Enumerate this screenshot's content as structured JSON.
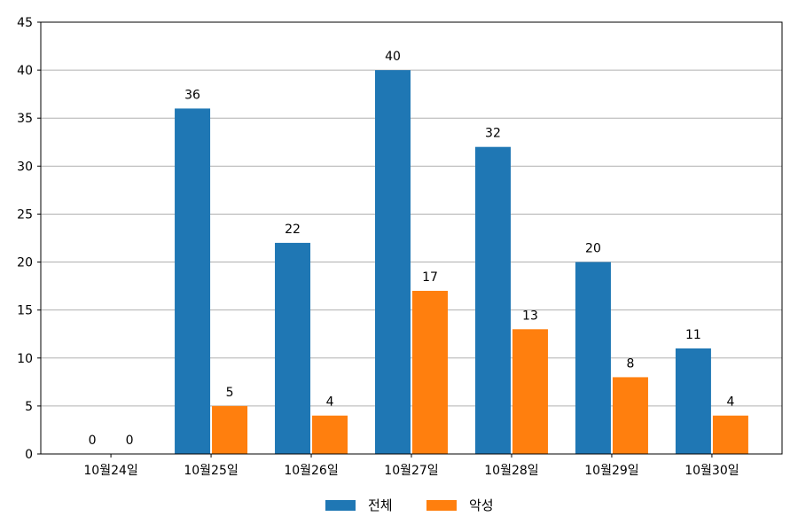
{
  "chart_data": {
    "type": "bar",
    "categories": [
      "10월24일",
      "10월25일",
      "10월26일",
      "10월27일",
      "10월28일",
      "10월29일",
      "10월30일"
    ],
    "series": [
      {
        "name": "전체",
        "color": "#1f77b4",
        "values": [
          0,
          36,
          22,
          40,
          32,
          20,
          11
        ]
      },
      {
        "name": "악성",
        "color": "#ff7f0e",
        "values": [
          0,
          5,
          4,
          17,
          13,
          8,
          4
        ]
      }
    ],
    "ylim": [
      0,
      45
    ],
    "yticks": [
      0,
      5,
      10,
      15,
      20,
      25,
      30,
      35,
      40,
      45
    ],
    "grid": true,
    "legend_position": "bottom-center",
    "data_labels": true
  }
}
